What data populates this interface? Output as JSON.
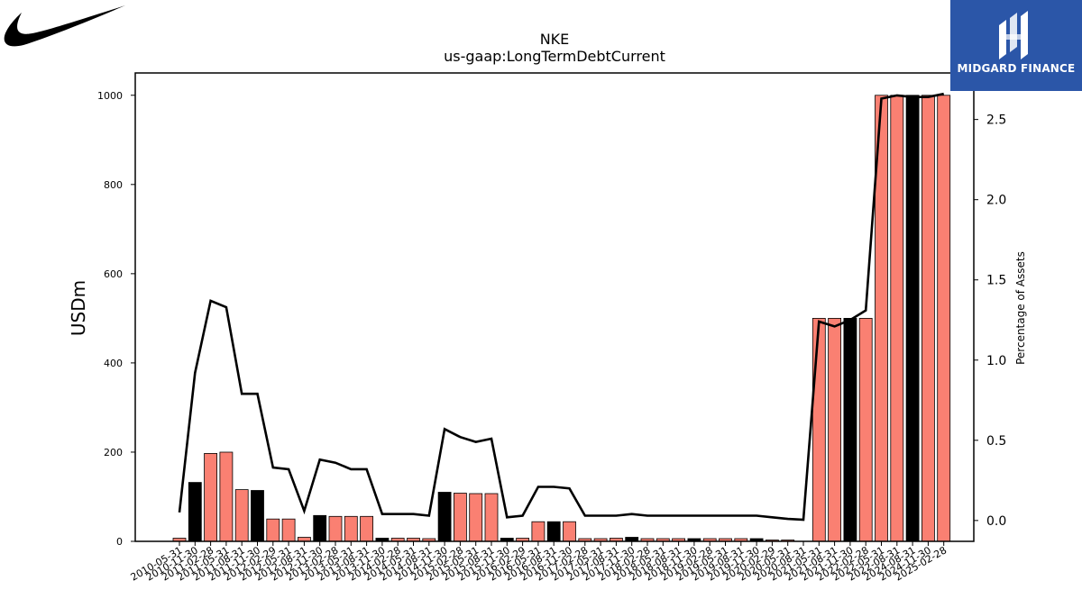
{
  "logos": {
    "left": "nike-swoosh",
    "right_text": "MIDGARD FINANCE",
    "right_bg": "#2b56a8"
  },
  "colors": {
    "bar_main": "#fa8072",
    "bar_highlight": "#000000",
    "line": "#000000"
  },
  "chart_data": {
    "type": "bar",
    "title": "NKE",
    "subtitle": "us-gaap:LongTermDebtCurrent",
    "ylabel": "USDm",
    "y2label": "Percentage of Assets",
    "ylim": [
      0,
      1050
    ],
    "y2lim": [
      -0.13,
      2.79
    ],
    "yticks": [
      0,
      200,
      400,
      600,
      800,
      1000
    ],
    "y2ticks": [
      "0.0",
      "0.5",
      "1.0",
      "1.5",
      "2.0",
      "2.5"
    ],
    "categories": [
      "2010-05-31",
      "2010-11-30",
      "2011-02-28",
      "2011-05-31",
      "2011-08-31",
      "2011-11-30",
      "2012-02-29",
      "2012-05-31",
      "2012-08-31",
      "2012-11-30",
      "2013-02-28",
      "2013-05-31",
      "2013-08-31",
      "2013-11-30",
      "2014-02-28",
      "2014-05-31",
      "2014-08-31",
      "2014-11-30",
      "2015-02-28",
      "2015-05-31",
      "2015-08-31",
      "2015-11-30",
      "2016-02-29",
      "2016-05-31",
      "2016-08-31",
      "2016-11-30",
      "2017-02-28",
      "2017-05-31",
      "2017-08-31",
      "2017-11-30",
      "2018-02-28",
      "2018-05-31",
      "2018-08-31",
      "2018-11-30",
      "2019-02-28",
      "2019-05-31",
      "2019-08-31",
      "2019-11-30",
      "2020-02-29",
      "2020-05-31",
      "2020-08-31",
      "2021-05-31",
      "2021-08-31",
      "2021-11-30",
      "2022-02-28",
      "2022-05-31",
      "2022-08-31",
      "2024-08-31",
      "2024-11-30",
      "2025-02-28"
    ],
    "values": [
      7,
      132,
      197,
      200,
      116,
      114,
      50,
      50,
      9,
      58,
      56,
      56,
      56,
      7,
      7,
      7,
      6,
      110,
      108,
      107,
      107,
      7,
      7,
      44,
      44,
      44,
      6,
      6,
      7,
      9,
      6,
      6,
      6,
      6,
      6,
      6,
      6,
      6,
      3,
      3,
      0,
      500,
      500,
      500,
      500,
      1000,
      1000,
      1000,
      1000,
      1000
    ],
    "highlight": [
      false,
      true,
      false,
      false,
      false,
      true,
      false,
      false,
      false,
      true,
      false,
      false,
      false,
      true,
      false,
      false,
      false,
      true,
      false,
      false,
      false,
      true,
      false,
      false,
      true,
      false,
      false,
      false,
      false,
      true,
      false,
      false,
      false,
      true,
      false,
      false,
      false,
      true,
      false,
      false,
      false,
      false,
      false,
      true,
      false,
      false,
      false,
      true,
      false,
      false
    ],
    "pct_assets": [
      0.05,
      0.92,
      1.37,
      1.33,
      0.79,
      0.79,
      0.33,
      0.32,
      0.06,
      0.38,
      0.36,
      0.32,
      0.32,
      0.04,
      0.04,
      0.04,
      0.03,
      0.57,
      0.52,
      0.49,
      0.51,
      0.02,
      0.03,
      0.21,
      0.21,
      0.2,
      0.03,
      0.03,
      0.03,
      0.04,
      0.03,
      0.03,
      0.03,
      0.03,
      0.03,
      0.03,
      0.03,
      0.03,
      0.02,
      0.01,
      0.005,
      1.24,
      1.21,
      1.25,
      1.31,
      2.63,
      2.65,
      2.64,
      2.64,
      2.66
    ],
    "grid": false,
    "legend": "none"
  }
}
